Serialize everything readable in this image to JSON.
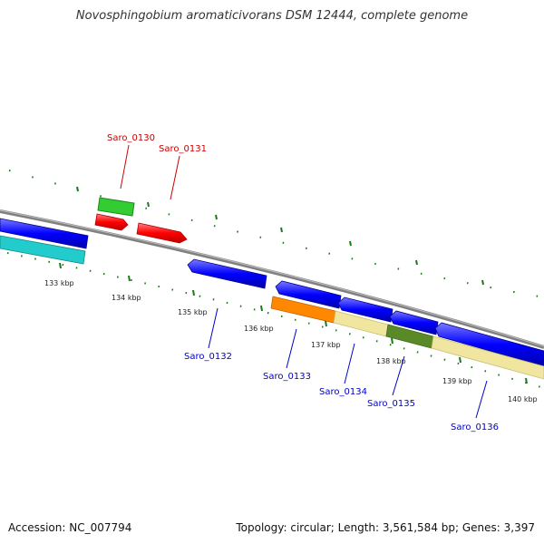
{
  "title": "Novosphingobium aromaticivorans DSM 12444, complete genome",
  "footer": {
    "accession": "Accession: NC_007794",
    "topology": "Topology: circular; Length: 3,561,584 bp; Genes: 3,397"
  },
  "colors": {
    "backbone": "#808080",
    "tick": "#1a7a1a",
    "forward_label": "#cc0000",
    "reverse_label": "#0000cc",
    "red_gene": "#ff0000",
    "blue_gene": "#0000ff",
    "green_gene": "#33cc33",
    "cyan_gene": "#22cccc",
    "orange_gene": "#ff8800",
    "khaki_gene": "#f0e6a0",
    "olive_gene": "#5a8a28"
  },
  "kbp_labels": [
    "133 kbp",
    "134 kbp",
    "135 kbp",
    "136 kbp",
    "137 kbp",
    "138 kbp",
    "139 kbp",
    "140 kbp"
  ],
  "gene_labels": [
    {
      "text": "Saro_0130",
      "strand": "forward"
    },
    {
      "text": "Saro_0131",
      "strand": "forward"
    },
    {
      "text": "Saro_0132",
      "strand": "reverse"
    },
    {
      "text": "Saro_0133",
      "strand": "reverse"
    },
    {
      "text": "Saro_0134",
      "strand": "reverse"
    },
    {
      "text": "Saro_0135",
      "strand": "reverse"
    },
    {
      "text": "Saro_0136",
      "strand": "reverse"
    }
  ]
}
